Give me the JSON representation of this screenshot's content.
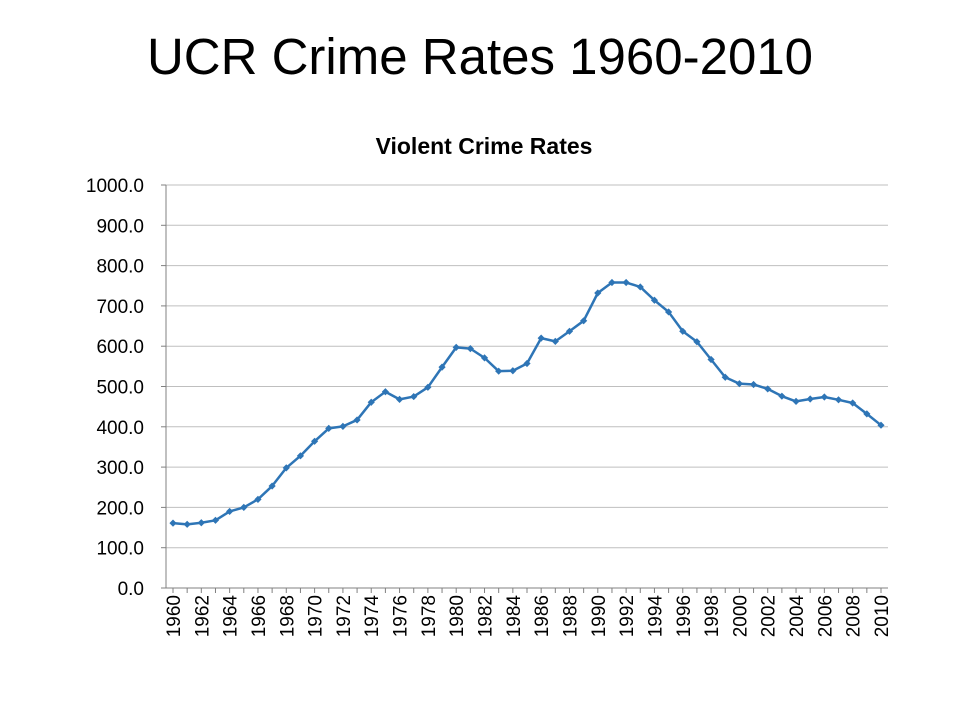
{
  "slide": {
    "title": "UCR Crime Rates 1960-2010"
  },
  "chart_data": {
    "type": "line",
    "title": "Violent Crime Rates",
    "xlabel": "",
    "ylabel": "",
    "ylim": [
      0,
      1000
    ],
    "yticks": [
      "0.0",
      "100.0",
      "200.0",
      "300.0",
      "400.0",
      "500.0",
      "600.0",
      "700.0",
      "800.0",
      "900.0",
      "1000.0"
    ],
    "xtick_labels": [
      "1960",
      "1962",
      "1964",
      "1966",
      "1968",
      "1970",
      "1972",
      "1974",
      "1976",
      "1978",
      "1980",
      "1982",
      "1984",
      "1986",
      "1988",
      "1990",
      "1992",
      "1994",
      "1996",
      "1998",
      "2000",
      "2002",
      "2004",
      "2006",
      "2008",
      "2010"
    ],
    "grid": "horizontal",
    "legend": "none",
    "color": "#2e75b6",
    "x": [
      1960,
      1961,
      1962,
      1963,
      1964,
      1965,
      1966,
      1967,
      1968,
      1969,
      1970,
      1971,
      1972,
      1973,
      1974,
      1975,
      1976,
      1977,
      1978,
      1979,
      1980,
      1981,
      1982,
      1983,
      1984,
      1985,
      1986,
      1987,
      1988,
      1989,
      1990,
      1991,
      1992,
      1993,
      1994,
      1995,
      1996,
      1997,
      1998,
      1999,
      2000,
      2001,
      2002,
      2003,
      2004,
      2005,
      2006,
      2007,
      2008,
      2009,
      2010
    ],
    "series": [
      {
        "values": [
          161,
          158,
          162,
          168,
          190,
          200,
          220,
          253,
          298,
          328,
          364,
          396,
          401,
          417,
          461,
          487,
          468,
          475,
          498,
          548,
          597,
          594,
          571,
          538,
          539,
          557,
          620,
          612,
          637,
          663,
          732,
          758,
          758,
          747,
          714,
          685,
          637,
          611,
          567,
          523,
          507,
          505,
          494,
          476,
          463,
          469,
          474,
          467,
          459,
          432,
          404
        ]
      }
    ]
  }
}
